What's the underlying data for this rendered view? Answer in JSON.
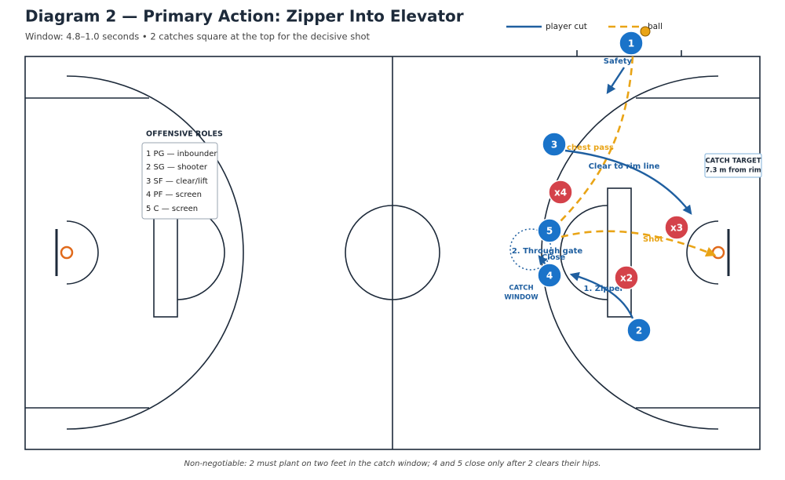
{
  "header": {
    "title": "Diagram 2 — Primary Action: Zipper Into Elevator",
    "subtitle": "Window: 4.8–1.0 seconds • 2 catches square at the top for the decisive shot"
  },
  "legend": {
    "items": [
      "player cut",
      "ball"
    ]
  },
  "roles": {
    "heading": "OFFENSIVE ROLES",
    "items": [
      "1  PG — inbounder",
      "2  SG — shooter",
      "3  SF — clear/lift",
      "4  PF — screen",
      "5  C — screen"
    ]
  },
  "players": [
    "1",
    "3",
    "5",
    "4",
    "2"
  ],
  "defenders": [
    "x4",
    "x3",
    "x2"
  ],
  "annotations": {
    "safety": "Safety",
    "pass": "chest pass",
    "clear": "Clear to rim line",
    "shot": "Shot",
    "gate": "2. Through gate",
    "close": "Close",
    "zipper": "1. Zipper",
    "catch_window": [
      "CATCH",
      "WINDOW"
    ],
    "catch_target": [
      "CATCH TARGET",
      "7.3 m from rim"
    ]
  },
  "footer": "Non-negotiable: 2 must plant on two feet in the catch window; 4 and 5 close only after 2 clears their hips."
}
